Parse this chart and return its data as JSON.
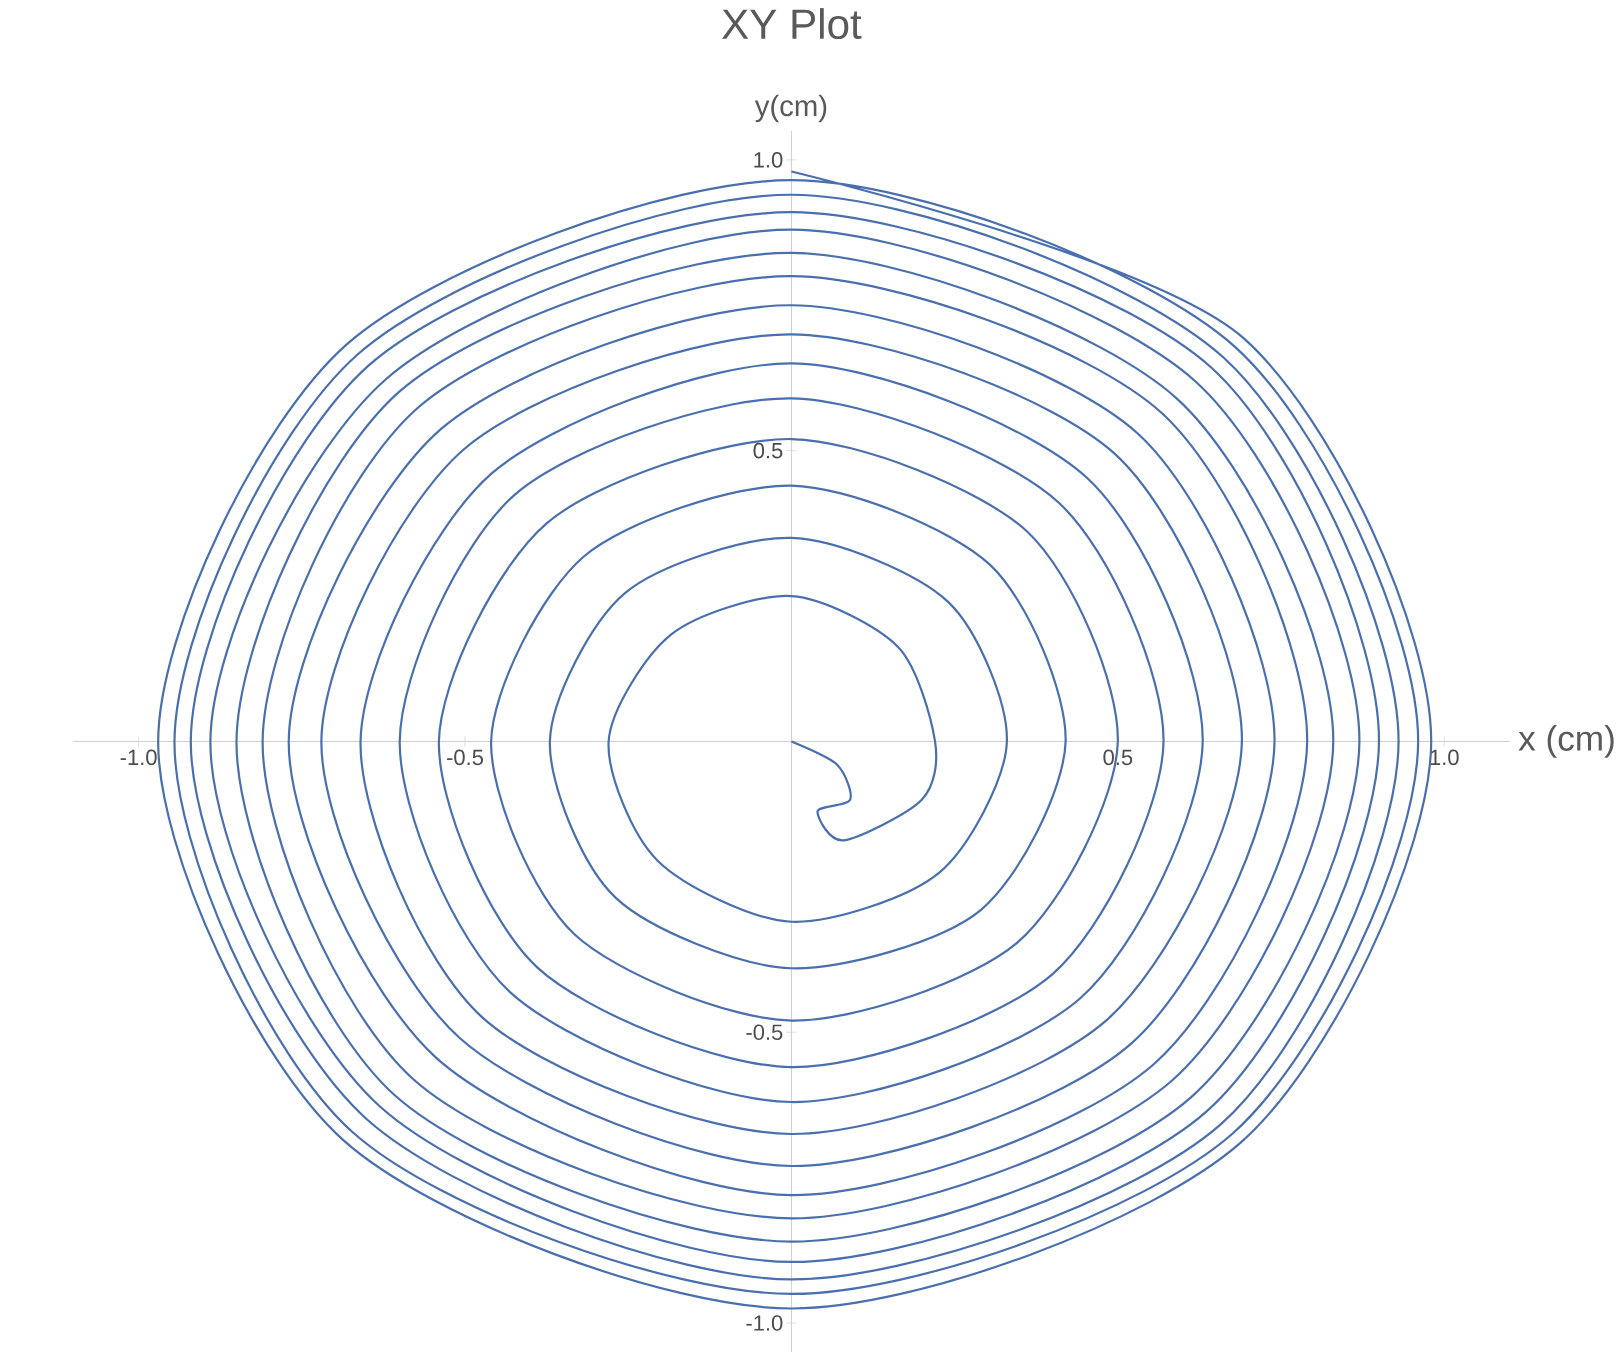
{
  "chart_data": {
    "type": "line",
    "title": "XY Plot",
    "xlabel": "x (cm)",
    "ylabel": "y(cm)",
    "xlim": [
      -1.1,
      1.1
    ],
    "ylim": [
      -1.05,
      1.05
    ],
    "xticks": [
      {
        "value": -1,
        "label": "-1.0"
      },
      {
        "value": -0.5,
        "label": "-0.5"
      },
      {
        "value": 0.5,
        "label": "0.5"
      },
      {
        "value": 1,
        "label": "1.0"
      }
    ],
    "yticks": [
      {
        "value": -1,
        "label": "-1.0"
      },
      {
        "value": -0.5,
        "label": "-0.5"
      },
      {
        "value": 0.5,
        "label": "0.5"
      },
      {
        "value": 1,
        "label": "1.0"
      }
    ],
    "grid": false,
    "marker": "none",
    "line_style": "solid",
    "series": [
      {
        "color": "#4a6fae",
        "x": [
          0,
          0.07,
          0.09,
          0.04,
          0.08,
          0.2,
          0.22,
          0.163,
          0,
          -0.184,
          -0.28,
          -0.205,
          0,
          0.226,
          0.33,
          0.24,
          0,
          -0.255,
          -0.37,
          -0.269,
          0,
          0.29,
          0.42,
          0.304,
          0,
          -0.318,
          -0.46,
          -0.332,
          0,
          0.346,
          0.5,
          0.361,
          0,
          -0.375,
          -0.54,
          -0.389,
          0,
          0.4,
          0.57,
          0.41,
          0,
          -0.424,
          -0.6,
          -0.431,
          0,
          0.442,
          0.63,
          0.453,
          0,
          -0.46,
          -0.66,
          -0.474,
          0,
          0.481,
          0.69,
          0.495,
          0,
          -0.502,
          -0.72,
          -0.509,
          0,
          0.52,
          0.74,
          0.53,
          0,
          -0.537,
          -0.77,
          -0.544,
          0,
          0.555,
          0.79,
          0.566,
          0,
          -0.573,
          -0.81,
          -0.58,
          0,
          0.583,
          0.83,
          0.59,
          0,
          -0.601,
          -0.85,
          -0.608,
          0,
          0.612,
          0.87,
          0.619,
          0,
          -0.622,
          -0.89,
          -0.629,
          0,
          0.636,
          0.9,
          0.643,
          0,
          -0.647,
          -0.92,
          -0.65,
          0,
          0.658,
          0.93,
          0.661,
          0,
          -0.665,
          -0.945,
          -0.672,
          0,
          0.675,
          0.96,
          0.679,
          0,
          -0.682,
          -0.97,
          -0.686,
          0,
          0.689,
          0.98,
          0.693,
          0
        ],
        "values": [
          0,
          -0.04,
          -0.1,
          -0.12,
          -0.17,
          -0.1,
          0,
          0.163,
          0.25,
          0.184,
          0,
          -0.205,
          -0.31,
          -0.226,
          0,
          0.24,
          0.35,
          0.255,
          0,
          -0.269,
          -0.39,
          -0.29,
          0,
          0.304,
          0.44,
          0.318,
          0,
          -0.332,
          -0.48,
          -0.346,
          0,
          0.361,
          0.52,
          0.375,
          0,
          -0.389,
          -0.56,
          -0.4,
          0,
          0.41,
          0.59,
          0.424,
          0,
          -0.431,
          -0.62,
          -0.442,
          0,
          0.453,
          0.65,
          0.46,
          0,
          -0.474,
          -0.675,
          -0.481,
          0,
          0.495,
          0.7,
          0.502,
          0,
          -0.509,
          -0.73,
          -0.52,
          0,
          0.53,
          0.75,
          0.537,
          0,
          -0.544,
          -0.78,
          -0.555,
          0,
          0.566,
          0.8,
          0.573,
          0,
          -0.58,
          -0.82,
          -0.583,
          0,
          0.59,
          0.84,
          0.601,
          0,
          -0.608,
          -0.86,
          -0.612,
          0,
          0.619,
          0.88,
          0.622,
          0,
          -0.629,
          -0.895,
          -0.636,
          0,
          0.643,
          0.91,
          0.647,
          0,
          -0.65,
          -0.925,
          -0.658,
          0,
          0.661,
          0.94,
          0.665,
          0,
          -0.672,
          -0.95,
          -0.675,
          0,
          0.679,
          0.965,
          0.682,
          0,
          -0.686,
          -0.975,
          -0.689,
          0,
          0.693,
          0.98
        ]
      }
    ]
  }
}
